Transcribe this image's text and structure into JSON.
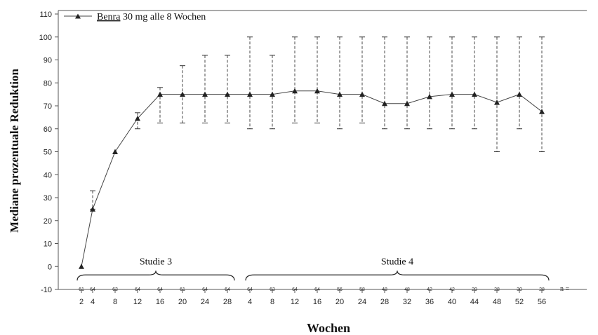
{
  "chart_data": {
    "type": "line",
    "ylabel": "Mediane prozentuale Reduktion",
    "xlabel": "Wochen",
    "ylim": [
      -10,
      110
    ],
    "yticks": [
      -10,
      0,
      10,
      20,
      30,
      40,
      50,
      60,
      70,
      80,
      90,
      100,
      110
    ],
    "grid": false,
    "legend_position": "top-left",
    "x_tick_labels": [
      "2",
      "4",
      "8",
      "12",
      "16",
      "20",
      "24",
      "28",
      "4",
      "8",
      "12",
      "16",
      "20",
      "24",
      "28",
      "32",
      "36",
      "40",
      "44",
      "48",
      "52",
      "56"
    ],
    "series": [
      {
        "name": "Benra 30 mg alle 8 Wochen",
        "name_underlined": "Benra",
        "name_rest": " 30 mg alle 8 Wochen",
        "marker": "triangle",
        "values": [
          0,
          25,
          50,
          64.5,
          75,
          75,
          75,
          75,
          75,
          75,
          76.5,
          76.5,
          75,
          75,
          71,
          71,
          74,
          75,
          75,
          71.5,
          75,
          67.5
        ],
        "upper": [
          null,
          33,
          null,
          67,
          78,
          87.5,
          92,
          92,
          100,
          92,
          100,
          100,
          100,
          100,
          100,
          100,
          100,
          100,
          100,
          100,
          100,
          100
        ],
        "lower": [
          null,
          25,
          null,
          60,
          62.5,
          62.5,
          62.5,
          62.5,
          60,
          60,
          62.5,
          62.5,
          60,
          62.5,
          60,
          60,
          60,
          60,
          60,
          50,
          60,
          50
        ]
      }
    ],
    "n_values": [
      "61",
      "64",
      "63",
      "64",
      "64",
      "61",
      "64",
      "64",
      "64",
      "63",
      "64",
      "64",
      "56",
      "58",
      "48",
      "48",
      "42",
      "42",
      "29",
      "28",
      "30",
      "28"
    ],
    "n_label": "n =",
    "studies": [
      {
        "label": "Studie 3",
        "from_index": 0,
        "to_index": 7
      },
      {
        "label": "Studie 4",
        "from_index": 8,
        "to_index": 21
      }
    ]
  }
}
